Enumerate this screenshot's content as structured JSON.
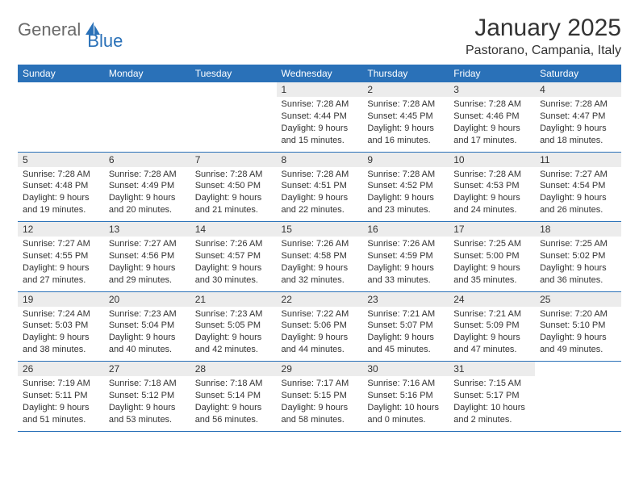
{
  "brand": {
    "part1": "General",
    "part2": "Blue"
  },
  "title": "January 2025",
  "location": "Pastorano, Campania, Italy",
  "colors": {
    "header_bg": "#2a71b8",
    "header_text": "#ffffff",
    "daynum_bg": "#ececec",
    "border": "#2a71b8",
    "text": "#333333",
    "logo_gray": "#6a6a6a",
    "logo_blue": "#2a71b8"
  },
  "dayHeaders": [
    "Sunday",
    "Monday",
    "Tuesday",
    "Wednesday",
    "Thursday",
    "Friday",
    "Saturday"
  ],
  "weeks": [
    [
      {
        "n": "",
        "sr": "",
        "ss": "",
        "dl": ""
      },
      {
        "n": "",
        "sr": "",
        "ss": "",
        "dl": ""
      },
      {
        "n": "",
        "sr": "",
        "ss": "",
        "dl": ""
      },
      {
        "n": "1",
        "sr": "7:28 AM",
        "ss": "4:44 PM",
        "dl": "9 hours and 15 minutes."
      },
      {
        "n": "2",
        "sr": "7:28 AM",
        "ss": "4:45 PM",
        "dl": "9 hours and 16 minutes."
      },
      {
        "n": "3",
        "sr": "7:28 AM",
        "ss": "4:46 PM",
        "dl": "9 hours and 17 minutes."
      },
      {
        "n": "4",
        "sr": "7:28 AM",
        "ss": "4:47 PM",
        "dl": "9 hours and 18 minutes."
      }
    ],
    [
      {
        "n": "5",
        "sr": "7:28 AM",
        "ss": "4:48 PM",
        "dl": "9 hours and 19 minutes."
      },
      {
        "n": "6",
        "sr": "7:28 AM",
        "ss": "4:49 PM",
        "dl": "9 hours and 20 minutes."
      },
      {
        "n": "7",
        "sr": "7:28 AM",
        "ss": "4:50 PM",
        "dl": "9 hours and 21 minutes."
      },
      {
        "n": "8",
        "sr": "7:28 AM",
        "ss": "4:51 PM",
        "dl": "9 hours and 22 minutes."
      },
      {
        "n": "9",
        "sr": "7:28 AM",
        "ss": "4:52 PM",
        "dl": "9 hours and 23 minutes."
      },
      {
        "n": "10",
        "sr": "7:28 AM",
        "ss": "4:53 PM",
        "dl": "9 hours and 24 minutes."
      },
      {
        "n": "11",
        "sr": "7:27 AM",
        "ss": "4:54 PM",
        "dl": "9 hours and 26 minutes."
      }
    ],
    [
      {
        "n": "12",
        "sr": "7:27 AM",
        "ss": "4:55 PM",
        "dl": "9 hours and 27 minutes."
      },
      {
        "n": "13",
        "sr": "7:27 AM",
        "ss": "4:56 PM",
        "dl": "9 hours and 29 minutes."
      },
      {
        "n": "14",
        "sr": "7:26 AM",
        "ss": "4:57 PM",
        "dl": "9 hours and 30 minutes."
      },
      {
        "n": "15",
        "sr": "7:26 AM",
        "ss": "4:58 PM",
        "dl": "9 hours and 32 minutes."
      },
      {
        "n": "16",
        "sr": "7:26 AM",
        "ss": "4:59 PM",
        "dl": "9 hours and 33 minutes."
      },
      {
        "n": "17",
        "sr": "7:25 AM",
        "ss": "5:00 PM",
        "dl": "9 hours and 35 minutes."
      },
      {
        "n": "18",
        "sr": "7:25 AM",
        "ss": "5:02 PM",
        "dl": "9 hours and 36 minutes."
      }
    ],
    [
      {
        "n": "19",
        "sr": "7:24 AM",
        "ss": "5:03 PM",
        "dl": "9 hours and 38 minutes."
      },
      {
        "n": "20",
        "sr": "7:23 AM",
        "ss": "5:04 PM",
        "dl": "9 hours and 40 minutes."
      },
      {
        "n": "21",
        "sr": "7:23 AM",
        "ss": "5:05 PM",
        "dl": "9 hours and 42 minutes."
      },
      {
        "n": "22",
        "sr": "7:22 AM",
        "ss": "5:06 PM",
        "dl": "9 hours and 44 minutes."
      },
      {
        "n": "23",
        "sr": "7:21 AM",
        "ss": "5:07 PM",
        "dl": "9 hours and 45 minutes."
      },
      {
        "n": "24",
        "sr": "7:21 AM",
        "ss": "5:09 PM",
        "dl": "9 hours and 47 minutes."
      },
      {
        "n": "25",
        "sr": "7:20 AM",
        "ss": "5:10 PM",
        "dl": "9 hours and 49 minutes."
      }
    ],
    [
      {
        "n": "26",
        "sr": "7:19 AM",
        "ss": "5:11 PM",
        "dl": "9 hours and 51 minutes."
      },
      {
        "n": "27",
        "sr": "7:18 AM",
        "ss": "5:12 PM",
        "dl": "9 hours and 53 minutes."
      },
      {
        "n": "28",
        "sr": "7:18 AM",
        "ss": "5:14 PM",
        "dl": "9 hours and 56 minutes."
      },
      {
        "n": "29",
        "sr": "7:17 AM",
        "ss": "5:15 PM",
        "dl": "9 hours and 58 minutes."
      },
      {
        "n": "30",
        "sr": "7:16 AM",
        "ss": "5:16 PM",
        "dl": "10 hours and 0 minutes."
      },
      {
        "n": "31",
        "sr": "7:15 AM",
        "ss": "5:17 PM",
        "dl": "10 hours and 2 minutes."
      },
      {
        "n": "",
        "sr": "",
        "ss": "",
        "dl": ""
      }
    ]
  ],
  "labels": {
    "sunrise": "Sunrise:",
    "sunset": "Sunset:",
    "daylight": "Daylight:"
  }
}
